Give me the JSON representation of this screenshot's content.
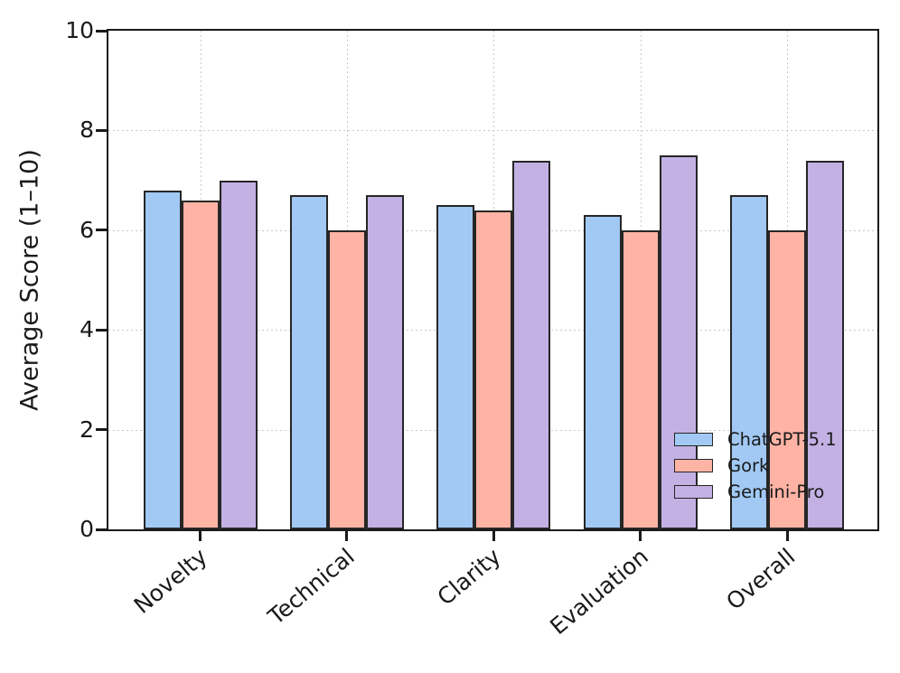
{
  "figure": {
    "background": "#ffffff",
    "text_color": "#1a1a1a"
  },
  "chart_data": {
    "type": "bar",
    "title": "",
    "xlabel": "",
    "ylabel": "Average Score (1–10)",
    "categories": [
      "Novelty",
      "Technical",
      "Clarity",
      "Evaluation",
      "Overall"
    ],
    "series": [
      {
        "name": "ChatGPT-5.1",
        "color": "#a1c9f4",
        "values": [
          6.8,
          6.7,
          6.5,
          6.3,
          6.7
        ]
      },
      {
        "name": "Gork",
        "color": "#ffb3a5",
        "values": [
          6.6,
          6.0,
          6.4,
          6.0,
          6.0
        ]
      },
      {
        "name": "Gemini-Pro",
        "color": "#c3b1e4",
        "values": [
          7.0,
          6.7,
          7.4,
          7.5,
          7.4
        ]
      }
    ],
    "ylim": [
      0,
      10
    ],
    "yticks": [
      0,
      2,
      4,
      6,
      8,
      10
    ],
    "grid": "dotted, both axes",
    "grid_color": "#c9c9c9",
    "bar_edge_color": "#262626",
    "legend_position": "lower right",
    "legend_frame": false,
    "x_tick_label_rotation_deg": 40
  }
}
